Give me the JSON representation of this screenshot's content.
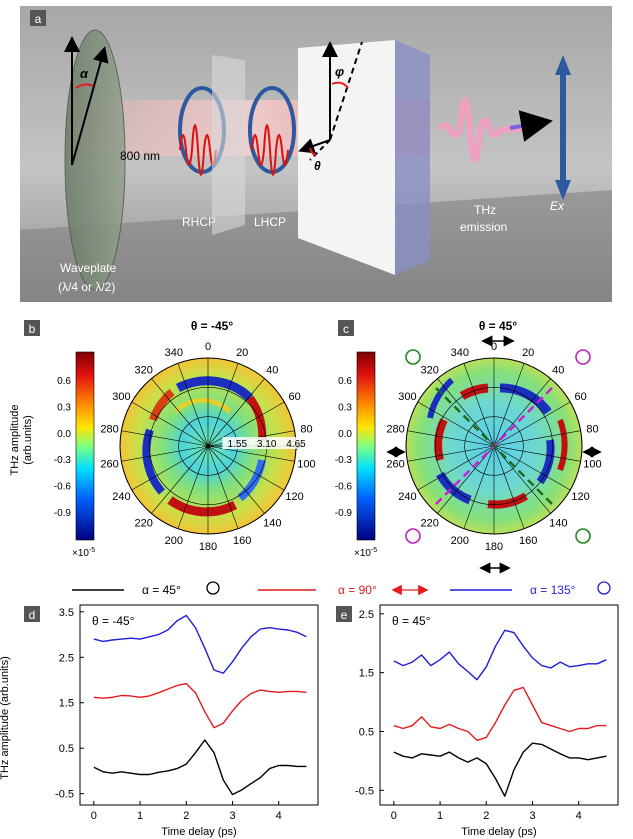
{
  "panel_a": {
    "label": "a",
    "alpha_symbol": "α",
    "phi_symbol": "φ",
    "theta_symbol": "θ",
    "wavelength": "800 nm",
    "rhcp": "RHCP",
    "lhcp": "LHCP",
    "thz_line1": "THz",
    "thz_line2": "emission",
    "ex_label": "Ex",
    "waveplate_line1": "Waveplate",
    "waveplate_line2": "(λ/4 or λ/2)"
  },
  "panel_b": {
    "label": "b",
    "title": "θ = -45°",
    "colorbar_ticks": [
      "0.6",
      "0.3",
      "0.0",
      "-0.3",
      "-0.6",
      "-0.9"
    ],
    "colorbar_exponent": "×10",
    "colorbar_exponent_power": "-5",
    "ylabel_line1": "THz amplitude",
    "ylabel_line2": "(arb.units)",
    "angle_labels": [
      "0",
      "20",
      "40",
      "60",
      "80",
      "100",
      "120",
      "140",
      "160",
      "180",
      "200",
      "220",
      "240",
      "260",
      "280",
      "300",
      "320",
      "340"
    ],
    "radial_labels": [
      "1.55",
      "3.10",
      "4.65"
    ]
  },
  "panel_c": {
    "label": "c",
    "title": "θ = 45°",
    "colorbar_ticks": [
      "0.6",
      "0.3",
      "0.0",
      "-0.3",
      "-0.6",
      "-0.9"
    ],
    "colorbar_exponent": "×10",
    "colorbar_exponent_power": "-5",
    "angle_labels": [
      "0",
      "20",
      "40",
      "60",
      "80",
      "100",
      "120",
      "140",
      "160",
      "180",
      "200",
      "220",
      "240",
      "260",
      "280",
      "300",
      "320",
      "340"
    ]
  },
  "legend": [
    {
      "label": "α = 45°",
      "color": "#000000"
    },
    {
      "label": "α = 90°",
      "color": "#e41a1c"
    },
    {
      "label": "α = 135°",
      "color": "#1f1fd8"
    }
  ],
  "chart_data": [
    {
      "type": "line",
      "panel": "d",
      "annotation": "θ = -45°",
      "xlabel": "Time delay (ps)",
      "ylabel": "THz amplitude (arb.units)",
      "xlim": [
        -0.3,
        4.85
      ],
      "ylim": [
        -0.75,
        3.65
      ],
      "xticks": [
        0,
        1,
        2,
        3,
        4
      ],
      "yticks": [
        -0.5,
        0.5,
        1.5,
        2.5,
        3.5
      ],
      "x": [
        0,
        0.2,
        0.4,
        0.6,
        0.8,
        1.0,
        1.2,
        1.4,
        1.6,
        1.8,
        2.0,
        2.2,
        2.4,
        2.6,
        2.8,
        3.0,
        3.2,
        3.4,
        3.6,
        3.8,
        4.0,
        4.2,
        4.4,
        4.6
      ],
      "series": [
        {
          "name": "α = 135°",
          "color": "#1f1fd8",
          "values": [
            2.9,
            2.85,
            2.88,
            2.9,
            2.92,
            2.9,
            2.95,
            3.0,
            3.1,
            3.3,
            3.42,
            3.15,
            2.7,
            2.22,
            2.15,
            2.4,
            2.7,
            2.95,
            3.12,
            3.15,
            3.12,
            3.1,
            3.05,
            2.95
          ]
        },
        {
          "name": "α = 90°",
          "color": "#e41a1c",
          "values": [
            1.62,
            1.6,
            1.62,
            1.66,
            1.65,
            1.62,
            1.65,
            1.72,
            1.8,
            1.88,
            1.92,
            1.72,
            1.3,
            0.95,
            1.05,
            1.32,
            1.55,
            1.7,
            1.78,
            1.75,
            1.73,
            1.75,
            1.75,
            1.73
          ]
        },
        {
          "name": "α = 45°",
          "color": "#000000",
          "values": [
            0.08,
            -0.02,
            -0.05,
            -0.02,
            -0.05,
            -0.08,
            -0.08,
            -0.03,
            0.0,
            0.05,
            0.15,
            0.4,
            0.68,
            0.4,
            -0.2,
            -0.52,
            -0.42,
            -0.28,
            -0.15,
            0.05,
            0.12,
            0.12,
            0.1,
            0.1
          ]
        }
      ]
    },
    {
      "type": "line",
      "panel": "e",
      "annotation": "θ = 45°",
      "xlabel": "Time delay (ps)",
      "ylabel": "",
      "xlim": [
        -0.3,
        4.85
      ],
      "ylim": [
        -0.75,
        2.65
      ],
      "xticks": [
        0,
        1,
        2,
        3,
        4
      ],
      "yticks": [
        -0.5,
        0.5,
        1.5,
        2.5
      ],
      "x": [
        0,
        0.2,
        0.4,
        0.6,
        0.8,
        1.0,
        1.2,
        1.4,
        1.6,
        1.8,
        2.0,
        2.2,
        2.4,
        2.6,
        2.8,
        3.0,
        3.2,
        3.4,
        3.6,
        3.8,
        4.0,
        4.2,
        4.4,
        4.6
      ],
      "series": [
        {
          "name": "α = 135°",
          "color": "#1f1fd8",
          "values": [
            1.7,
            1.62,
            1.68,
            1.8,
            1.62,
            1.72,
            1.85,
            1.65,
            1.52,
            1.38,
            1.6,
            1.95,
            2.22,
            2.18,
            1.95,
            1.75,
            1.62,
            1.58,
            1.68,
            1.6,
            1.62,
            1.65,
            1.65,
            1.72
          ]
        },
        {
          "name": "α = 90°",
          "color": "#e41a1c",
          "values": [
            0.6,
            0.55,
            0.6,
            0.75,
            0.58,
            0.55,
            0.62,
            0.55,
            0.5,
            0.35,
            0.4,
            0.65,
            0.95,
            1.2,
            1.25,
            0.95,
            0.65,
            0.6,
            0.55,
            0.5,
            0.55,
            0.55,
            0.6,
            0.6
          ]
        },
        {
          "name": "α = 45°",
          "color": "#000000",
          "values": [
            0.15,
            0.08,
            0.05,
            0.12,
            0.1,
            0.08,
            0.15,
            0.05,
            -0.02,
            0.05,
            -0.05,
            -0.3,
            -0.6,
            -0.15,
            0.15,
            0.3,
            0.28,
            0.2,
            0.12,
            0.05,
            0.05,
            0.02,
            0.05,
            0.08
          ]
        }
      ]
    }
  ]
}
